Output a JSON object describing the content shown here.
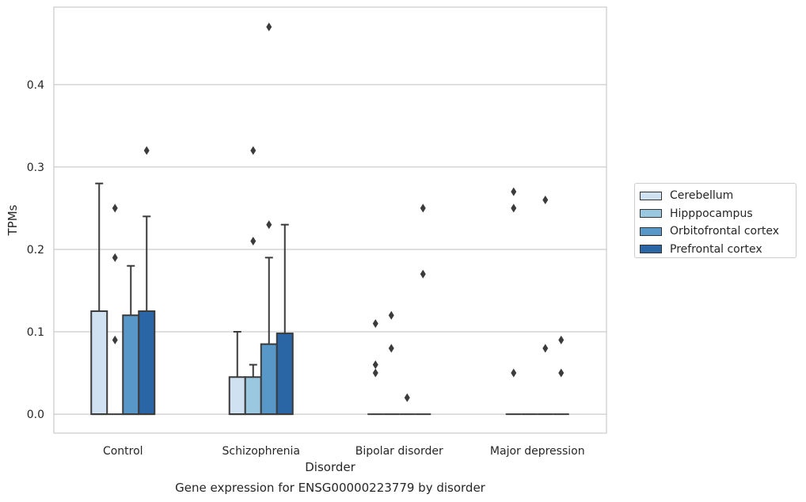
{
  "chart_data": {
    "type": "box",
    "title": "",
    "xlabel": "Disorder",
    "ylabel": "TPMs",
    "caption": "Gene expression for ENSG00000223779 by disorder",
    "ylim": [
      -0.023,
      0.494
    ],
    "yticks": [
      "0.0",
      "0.1",
      "0.2",
      "0.3",
      "0.4"
    ],
    "ytick_values": [
      0.0,
      0.1,
      0.2,
      0.3,
      0.4
    ],
    "grid": "horizontal",
    "legend_position": "right",
    "categories": [
      "Control",
      "Schizophrenia",
      "Bipolar disorder",
      "Major depression"
    ],
    "series": [
      {
        "name": "Cerebellum",
        "color": "#d0e1f2",
        "boxes": [
          {
            "q1": 0.0,
            "median": 0.0,
            "q3": 0.125,
            "whisker_low": 0.0,
            "whisker_high": 0.28,
            "outliers": []
          },
          {
            "q1": 0.0,
            "median": 0.0,
            "q3": 0.045,
            "whisker_low": 0.0,
            "whisker_high": 0.1,
            "outliers": []
          },
          {
            "q1": 0.0,
            "median": 0.0,
            "q3": 0.0,
            "whisker_low": 0.0,
            "whisker_high": 0.0,
            "outliers": [
              0.11,
              0.06,
              0.05
            ]
          },
          {
            "q1": 0.0,
            "median": 0.0,
            "q3": 0.0,
            "whisker_low": 0.0,
            "whisker_high": 0.0,
            "outliers": [
              0.27,
              0.25,
              0.05
            ]
          }
        ]
      },
      {
        "name": "Hipppocampus",
        "color": "#9ac8e0",
        "boxes": [
          {
            "q1": 0.0,
            "median": 0.0,
            "q3": 0.0,
            "whisker_low": 0.0,
            "whisker_high": 0.0,
            "outliers": [
              0.25,
              0.19,
              0.09
            ]
          },
          {
            "q1": 0.0,
            "median": 0.0,
            "q3": 0.045,
            "whisker_low": 0.0,
            "whisker_high": 0.06,
            "outliers": [
              0.32,
              0.21
            ]
          },
          {
            "q1": 0.0,
            "median": 0.0,
            "q3": 0.0,
            "whisker_low": 0.0,
            "whisker_high": 0.0,
            "outliers": [
              0.12,
              0.08
            ]
          },
          {
            "q1": 0.0,
            "median": 0.0,
            "q3": 0.0,
            "whisker_low": 0.0,
            "whisker_high": 0.0,
            "outliers": []
          }
        ]
      },
      {
        "name": "Orbitofrontal cortex",
        "color": "#5898c8",
        "boxes": [
          {
            "q1": 0.0,
            "median": 0.0,
            "q3": 0.12,
            "whisker_low": 0.0,
            "whisker_high": 0.18,
            "outliers": []
          },
          {
            "q1": 0.0,
            "median": 0.0,
            "q3": 0.085,
            "whisker_low": 0.0,
            "whisker_high": 0.19,
            "outliers": [
              0.47,
              0.23
            ]
          },
          {
            "q1": 0.0,
            "median": 0.0,
            "q3": 0.0,
            "whisker_low": 0.0,
            "whisker_high": 0.0,
            "outliers": [
              0.02
            ]
          },
          {
            "q1": 0.0,
            "median": 0.0,
            "q3": 0.0,
            "whisker_low": 0.0,
            "whisker_high": 0.0,
            "outliers": [
              0.26,
              0.08
            ]
          }
        ]
      },
      {
        "name": "Prefrontal cortex",
        "color": "#2a65a6",
        "boxes": [
          {
            "q1": 0.0,
            "median": 0.0,
            "q3": 0.125,
            "whisker_low": 0.0,
            "whisker_high": 0.24,
            "outliers": [
              0.32
            ]
          },
          {
            "q1": 0.0,
            "median": 0.0,
            "q3": 0.098,
            "whisker_low": 0.0,
            "whisker_high": 0.23,
            "outliers": []
          },
          {
            "q1": 0.0,
            "median": 0.0,
            "q3": 0.0,
            "whisker_low": 0.0,
            "whisker_high": 0.0,
            "outliers": [
              0.25,
              0.17
            ]
          },
          {
            "q1": 0.0,
            "median": 0.0,
            "q3": 0.0,
            "whisker_low": 0.0,
            "whisker_high": 0.0,
            "outliers": [
              0.09,
              0.05
            ]
          }
        ]
      }
    ]
  }
}
